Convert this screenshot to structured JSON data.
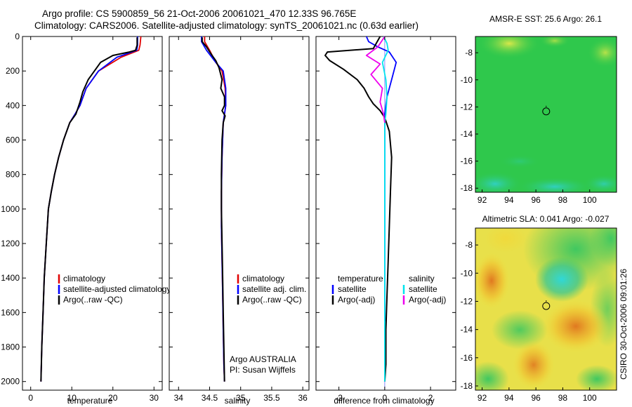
{
  "header": {
    "title_line1": "Argo profile: CS 5900859_56 21-Oct-2006 20061021_470 12.33S 96.765E",
    "title_line2": "Climatology: CARS2006. Satellite-adjusted climatology: synTS_20061021.nc (0.63d earlier)"
  },
  "side_label": "CSIRO 30-Oct-2006 09:01:26",
  "colors": {
    "climatology": "#e00000",
    "satellite": "#0000ff",
    "argo": "#000000",
    "satellite_sal": "#00e5ee",
    "argo_sal_adj": "#ee00ee"
  },
  "chart_data": [
    {
      "type": "line",
      "name": "temperature-profile",
      "xlabel": "temperature",
      "ylabel": "",
      "xlim": [
        -2,
        32
      ],
      "ylim": [
        2050,
        0
      ],
      "xticks": [
        0,
        10,
        20,
        30
      ],
      "yticks": [
        0,
        200,
        400,
        600,
        800,
        1000,
        1200,
        1400,
        1600,
        1800,
        2000
      ],
      "legend": [
        "climatology",
        "satellite-adjusted climatology",
        "Argo(..raw -QC)"
      ],
      "series": [
        {
          "name": "climatology",
          "color_key": "climatology",
          "x": [
            26.8,
            26.6,
            26.3,
            22,
            16.5,
            13.5,
            12,
            10.8,
            9.5,
            8,
            6.8,
            5.8,
            5,
            4.3,
            3.8,
            3.3,
            3,
            2.7,
            2.5
          ],
          "y": [
            0,
            50,
            80,
            120,
            200,
            300,
            400,
            450,
            500,
            600,
            700,
            800,
            900,
            1000,
            1200,
            1400,
            1600,
            1800,
            2000
          ]
        },
        {
          "name": "satellite-adjusted climatology",
          "color_key": "satellite",
          "x": [
            26,
            26,
            25.8,
            21,
            16.5,
            13.5,
            12,
            10.8,
            9.5,
            8,
            6.8,
            5.8,
            5,
            4.3,
            3.8,
            3.3,
            3,
            2.7,
            2.5
          ],
          "y": [
            0,
            50,
            80,
            120,
            200,
            300,
            400,
            450,
            500,
            600,
            700,
            800,
            900,
            1000,
            1200,
            1400,
            1600,
            1800,
            2000
          ]
        },
        {
          "name": "Argo(..raw -QC)",
          "color_key": "argo",
          "x": [
            25.9,
            25.9,
            25.5,
            24,
            20,
            17,
            14,
            12.7,
            12,
            11,
            9.5,
            8,
            6.8,
            5.8,
            5,
            4.3,
            3.8,
            3.3,
            3,
            2.7,
            2.5
          ],
          "y": [
            5,
            50,
            80,
            90,
            110,
            150,
            250,
            320,
            380,
            450,
            500,
            600,
            700,
            800,
            900,
            1000,
            1200,
            1400,
            1600,
            1800,
            2000
          ]
        }
      ]
    },
    {
      "type": "line",
      "name": "salinity-profile",
      "xlabel": "salinity",
      "ylabel": "",
      "xlim": [
        33.85,
        36.1
      ],
      "ylim": [
        2050,
        0
      ],
      "xticks": [
        34,
        34.5,
        35,
        35.5,
        36
      ],
      "legend": [
        "climatology",
        "satellite adj. clim.",
        "Argo(..raw -QC)"
      ],
      "annotations": [
        "Argo AUSTRALIA",
        "PI: Susan Wijffels"
      ],
      "series": [
        {
          "name": "climatology",
          "color_key": "climatology",
          "x": [
            34.42,
            34.42,
            34.5,
            34.6,
            34.7,
            34.75,
            34.76,
            34.74,
            34.72,
            34.7,
            34.69,
            34.69,
            34.7,
            34.71,
            34.72,
            34.73,
            34.74
          ],
          "y": [
            0,
            30,
            80,
            150,
            200,
            300,
            400,
            450,
            500,
            700,
            900,
            1100,
            1300,
            1500,
            1700,
            1900,
            2000
          ]
        },
        {
          "name": "satellite adj. clim.",
          "color_key": "satellite",
          "x": [
            34.37,
            34.37,
            34.45,
            34.6,
            34.72,
            34.76,
            34.76,
            34.74,
            34.72,
            34.7,
            34.69,
            34.69,
            34.7,
            34.71,
            34.72,
            34.73,
            34.74
          ],
          "y": [
            0,
            30,
            80,
            150,
            200,
            300,
            400,
            450,
            500,
            700,
            900,
            1100,
            1300,
            1500,
            1700,
            1900,
            2000
          ]
        },
        {
          "name": "Argo(..raw -QC)",
          "color_key": "argo",
          "x": [
            34.38,
            34.38,
            34.45,
            34.52,
            34.6,
            34.65,
            34.7,
            34.68,
            34.74,
            34.74,
            34.7,
            34.75,
            34.72,
            34.7,
            34.69,
            34.69,
            34.7,
            34.71,
            34.72,
            34.73,
            34.74
          ],
          "y": [
            5,
            30,
            60,
            100,
            140,
            180,
            250,
            300,
            350,
            400,
            430,
            460,
            500,
            600,
            800,
            1000,
            1200,
            1400,
            1600,
            1800,
            2000
          ]
        }
      ]
    },
    {
      "type": "line",
      "name": "difference-profile",
      "xlabel": "difference from climatology",
      "ylabel": "",
      "xlim": [
        -3,
        3.1
      ],
      "ylim": [
        2050,
        0
      ],
      "xticks": [
        -2,
        0,
        2
      ],
      "legend": [
        "temperature",
        "satellite",
        "Argo(-adj)",
        "salinity",
        "satellite",
        "Argo(-adj)"
      ],
      "series": [
        {
          "name": "temperature satellite",
          "color_key": "satellite",
          "x": [
            -0.8,
            -0.7,
            -0.3,
            0.2,
            0.5,
            0.3,
            0.1,
            0,
            0,
            0,
            0,
            0,
            0,
            0,
            0
          ],
          "y": [
            0,
            30,
            60,
            90,
            150,
            250,
            350,
            450,
            500,
            800,
            1000,
            1200,
            1400,
            1600,
            1650
          ]
        },
        {
          "name": "temperature Argo(-adj)",
          "color_key": "argo",
          "x": [
            -0.2,
            -0.5,
            -2.5,
            -2.6,
            -2.4,
            -1.8,
            -1.2,
            -0.9,
            -0.7,
            -0.5,
            -0.2,
            0,
            0.2,
            0.3,
            0.25,
            0.2,
            0.15,
            0.1,
            0.05,
            0.05,
            0
          ],
          "y": [
            0,
            70,
            90,
            110,
            140,
            190,
            250,
            300,
            350,
            390,
            430,
            470,
            550,
            700,
            900,
            1100,
            1300,
            1500,
            1700,
            1900,
            2000
          ]
        },
        {
          "name": "salinity satellite",
          "color_key": "satellite_sal",
          "x": [
            -0.05,
            0.1,
            0.15,
            -0.1,
            0.05,
            0.1,
            0.05,
            0,
            0,
            0,
            0,
            0,
            0,
            0,
            0
          ],
          "y": [
            0,
            40,
            80,
            150,
            250,
            350,
            450,
            500,
            800,
            1000,
            1200,
            1400,
            1600,
            1800,
            2000
          ]
        },
        {
          "name": "salinity Argo(-adj)",
          "color_key": "argo_sal_adj",
          "x": [
            0,
            -0.3,
            -0.8,
            -0.2,
            -0.6,
            -0.1,
            -0.2,
            -0.05,
            0
          ],
          "y": [
            0,
            60,
            110,
            160,
            220,
            300,
            380,
            450,
            500
          ]
        }
      ]
    },
    {
      "type": "heatmap",
      "name": "amsre-sst-map",
      "title": "AMSR-E SST: 25.6 Argo: 26.1",
      "xlim": [
        91.5,
        102
      ],
      "ylim": [
        -18.3,
        -6.8
      ],
      "xticks": [
        92,
        94,
        96,
        98,
        100
      ],
      "yticks": [
        -8,
        -10,
        -12,
        -14,
        -16,
        -18
      ],
      "marker": {
        "lon": 96.765,
        "lat": -12.33
      }
    },
    {
      "type": "heatmap",
      "name": "altimetric-sla-map",
      "title": "Altimetric SLA: 0.041 Argo: -0.027",
      "xlim": [
        91.5,
        102
      ],
      "ylim": [
        -18.3,
        -6.8
      ],
      "xticks": [
        92,
        94,
        96,
        98,
        100
      ],
      "yticks": [
        -8,
        -10,
        -12,
        -14,
        -16,
        -18
      ],
      "marker": {
        "lon": 96.765,
        "lat": -12.33
      }
    }
  ]
}
